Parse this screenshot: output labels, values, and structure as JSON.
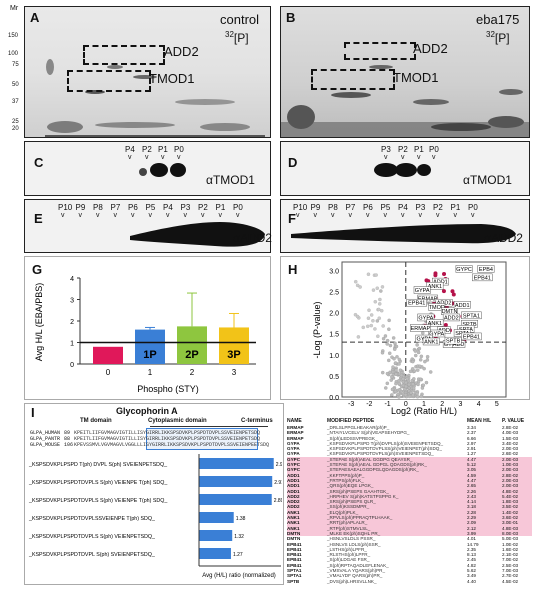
{
  "panelA": {
    "letter": "A",
    "condition": "control",
    "isotope_mass": "32",
    "isotope_symbol": "[P]",
    "box1": "ADD2",
    "box2": "TMOD1"
  },
  "panelB": {
    "letter": "B",
    "condition": "eba175",
    "isotope_mass": "32",
    "isotope_symbol": "[P]",
    "box1": "ADD2",
    "box2": "TMOD1"
  },
  "mr": {
    "header": "Mr",
    "marks": [
      "150",
      "100",
      "75",
      "50",
      "37",
      "25",
      "20"
    ]
  },
  "panelC": {
    "letter": "C",
    "lanes": [
      "P4",
      "P2",
      "P1",
      "P0"
    ],
    "antibody": "αTMOD1"
  },
  "panelD": {
    "letter": "D",
    "lanes": [
      "P3",
      "P2",
      "P1",
      "P0"
    ],
    "antibody": "αTMOD1"
  },
  "panelE": {
    "letter": "E",
    "lanes": [
      "P10",
      "P9",
      "P8",
      "P7",
      "P6",
      "P5",
      "P4",
      "P3",
      "P2",
      "P1",
      "P0"
    ],
    "antibody": "αADD2"
  },
  "panelF": {
    "letter": "F",
    "lanes": [
      "P10",
      "P9",
      "P8",
      "P7",
      "P6",
      "P5",
      "P4",
      "P3",
      "P2",
      "P1",
      "P0"
    ],
    "antibody": "αADD2"
  },
  "panelG": {
    "letter": "G",
    "ylabel": "Avg H/L (EBA/PBS)",
    "xlabel": "Phospho (STY)",
    "bar_labels": [
      "1P",
      "2P",
      "3P"
    ]
  },
  "chart_data": [
    {
      "type": "bar",
      "categories": [
        "0",
        "1",
        "2",
        "3"
      ],
      "values": [
        0.8,
        1.6,
        1.75,
        1.7
      ],
      "errors": [
        0,
        0.1,
        1.55,
        0.65
      ],
      "ylim": [
        0,
        4
      ],
      "yticks": [
        "0",
        "1",
        "2",
        "3",
        "4"
      ],
      "colors": [
        "#e0185a",
        "#3a7fd6",
        "#8ec63f",
        "#f2c318"
      ],
      "reference_line": 1,
      "ylabel": "Avg H/L (EBA/PBS)",
      "xlabel": "Phospho (STY)"
    },
    {
      "type": "scatter",
      "xlabel": "Log2 (Ratio H/L)",
      "ylabel": "-Log (P-value)",
      "xticks": [
        "-3",
        "-2",
        "-1",
        "0",
        "1",
        "2",
        "3",
        "4",
        "5"
      ],
      "yticks": [
        "0.0",
        "0.5",
        "1.0",
        "1.5",
        "2.0",
        "2.5",
        "3.0"
      ],
      "xlim": [
        -3.5,
        5.5
      ],
      "ylim": [
        0,
        3.2
      ],
      "cut_y": 1.3,
      "cut_x": 0,
      "labels": [
        "GYPC",
        "EPB4",
        "EPB41",
        "ADD1",
        "ANK1",
        "GYPA",
        "ERMAP",
        "EPB41",
        "ADD2",
        "TMOD",
        "DMTN",
        "SPTA1",
        "ADD1",
        "ADD2",
        "GYPA",
        "ANK1",
        "SPTB",
        "SPTA",
        "ADD",
        "GYPA",
        "ERMAP",
        "GYPA",
        "ANK1",
        "SPTA",
        "EPB41",
        "GYPA",
        "ADD",
        "SPTB"
      ]
    },
    {
      "type": "bar",
      "orientation": "horizontal",
      "categories": [
        "_KSPSDVKPLPSPD T(ph) DVPL S(ph) SVEIENPETSDQ_",
        "_KSPSDVKPLPSPDTDVPLS S(ph) VEIENPE T(ph) SDQ_",
        "_KSPSDVKPLPSPDTDVPLS S(ph) VEIENPE T(ph) SDQ_",
        "_KSPSDVKPLPSPDTDVPLSSVEIENPE T(ph) SDQ_",
        "_KSPSDVKPLPSPDTDVPLS S(ph) VEIENPETSDQ_",
        "_KSPSDVKPLPSPDTDVPL S(ph) SVEIENPETSDQ_"
      ],
      "values": [
        2.97,
        2.91,
        2.89,
        1.38,
        1.32,
        1.27
      ],
      "xlabel": "Avg (H/L) ratio (normalized)",
      "title": "Glycophorin A"
    }
  ],
  "panelH": {
    "letter": "H"
  },
  "tableH": {
    "headers": [
      "NAME",
      "MODIFIED PEPTIDE",
      "MEAN H/L",
      "P. VALUE"
    ],
    "rows": [
      [
        "ERMAP",
        "_DRLSLPPGLHEAKAR(ph)P_",
        "3.34",
        "2.8E-02"
      ],
      [
        "ERMAP",
        "_NTAIYLVCELV S(ph)VEAPSEHYDPG_",
        "2.37",
        "4.0E-03"
      ],
      [
        "ERMAP",
        "_S(ph)LEDSSVPREGK_",
        "6.66",
        "1.5E-03"
      ],
      [
        "GYPA",
        "_KSPSDVKPLPSPD T(ph)DVPLS(ph)SVEIENPETSDQ_",
        "2.97",
        "3.4E-02"
      ],
      [
        "GYPA",
        "_KSPSDVKPLPSPDTDVPLSS(ph)VEIENPET(ph)SDQ_",
        "2.91",
        "2.0E-03"
      ],
      [
        "GYPA",
        "_KSPSDVKPLPSPDTDVPLS(ph)SVEIENPETSDQ_",
        "1.27",
        "2.6E-02"
      ],
      [
        "GYPC",
        "_STEPAE S(ph)AEAL GGDPG QEAYSR_",
        "4.47",
        "2.0E-03"
      ],
      [
        "GYPC",
        "_STEPAE S(ph)AEAL GDPGL QDAGDS(ph)RK_",
        "5.12",
        "1.0E-03"
      ],
      [
        "GYPC",
        "_STEPAESAEALGGDPGLQDAGDS(ph)RK_",
        "3.05",
        "2.0E-03"
      ],
      [
        "ADD1",
        "_KKFTPPS(ph)P_",
        "4.59",
        "2.8E-02"
      ],
      [
        "ADD1",
        "_FRTPS(ph)FLK_",
        "4.47",
        "2.0E-03"
      ],
      [
        "ADD1",
        "_QRS(ph)EQE LPGK_",
        "2.65",
        "2.0E-03"
      ],
      [
        "ADD1",
        "_SRS(ph)PSEPS GAAHTGK_",
        "2.26",
        "4.8E-02"
      ],
      [
        "ADD2",
        "_HRPHEV S(ph)KATSTPSPPG K_",
        "2.43",
        "5.4E-02"
      ],
      [
        "ADD2",
        "_SRS(ph)PSEPS QLR_",
        "4.14",
        "1.8E-03"
      ],
      [
        "ADD2",
        "_SS(ph)KSSDMPR_",
        "3.18",
        "3.5E-02"
      ],
      [
        "ANK1",
        "_ELQ(ph)PLK_",
        "2.28",
        "1.4E-02"
      ],
      [
        "ANK1",
        "_RPVLS(ph)PPRAQTPLHAAK_",
        "2.29",
        "3.6E-02"
      ],
      [
        "ANK1",
        "_RRT(ph)APLALR_",
        "2.09",
        "3.0E-01"
      ],
      [
        "ANK1",
        "_RTP(ph)STMVLSL_",
        "2.12",
        "4.8E-03"
      ],
      [
        "DMTN",
        "_MLKE EK(ph)SQHL PR_",
        "3.99",
        "8.0E-03"
      ],
      [
        "DMTN",
        "_HSNLVSLDLS PSSR_",
        "4.01",
        "5.0E-03"
      ],
      [
        "EPB41",
        "_HSNLVS LDLS(ph)SSR_",
        "14.79",
        "1.0E-02"
      ],
      [
        "EPB41",
        "_LSTHS(ph)LPFR_",
        "2.35",
        "1.6E-02"
      ],
      [
        "EPB41",
        "_RLSTHS(ph)LPFR_",
        "8.13",
        "2.1E-02"
      ],
      [
        "EPB41",
        "_S(ph)LDGAE FSR_",
        "2.45",
        "7.0E-02"
      ],
      [
        "EPB41",
        "_S(ph)RPTAQADLEFLENAK_",
        "4.82",
        "2.5E-03"
      ],
      [
        "SPTA1",
        "_VMSVALA YQARS(ph)PR_",
        "5.62",
        "7.0E-03"
      ],
      [
        "SPTA1",
        "_VMALYDF QARS(ph)PR_",
        "3.49",
        "2.7E-02"
      ],
      [
        "SPTB",
        "_DVS(ph)LHRSVLLNK_",
        "4.40",
        "4.5E-02"
      ]
    ],
    "highlight_rows": [
      6,
      7,
      8,
      9,
      10,
      11,
      12,
      13,
      14,
      15,
      16,
      17,
      18,
      19,
      20
    ]
  },
  "panelI": {
    "letter": "I",
    "title": "Glycophorin A",
    "domain_tm": "TM domain",
    "domain_cyto": "Cytoplasmic domain",
    "domain_cterm": "C-terminus",
    "seq_rows": [
      [
        "GLPA_HUMAN",
        "89",
        "KPEITLIIFGVMAGVIGTILLISYGIRRLIKKSPSDVKPLPSPDTDVPLSSVEIENPETSDQ"
      ],
      [
        "GLPA_PANTR",
        "88",
        "KPEITLIIFGVMAGVIGTILLISYGIRRLIKKSPSDVKPLPSPDTDVPLSSVEIENPETSDQ"
      ],
      [
        "GLPA_MOUSE",
        "106",
        "KPEVSSMVLVGVMAGVLVGGLLLISYGIRRLIKKSPSDVKPLPSPDTDVPLSSVEIENPEETSDQ"
      ]
    ],
    "bar_labels": [
      "_KSPSDVKPLPSPD T(ph) DVPL S(ph) SVEIENPETSDQ_",
      "_KSPSDVKPLPSPDTDVPLS S(ph) VEIENPE T(ph) SDQ_",
      "_KSPSDVKPLPSPDTDVPLS S(ph) VEIENPE T(ph) SDQ_",
      "_KSPSDVKPLPSPDTDVPLSSVEIENPE T(ph) SDQ_",
      "_KSPSDVKPLPSPDTDVPLS S(ph) VEIENPETSDQ_",
      "_KSPSDVKPLPSPDTDVPL S(ph) SVEIENPETSDQ_"
    ],
    "bar_values": [
      "2.97",
      "2.91",
      "2.89",
      "1.38",
      "1.32",
      "1.27"
    ],
    "xlabel": "Avg (H/L) ratio (normalized)"
  }
}
